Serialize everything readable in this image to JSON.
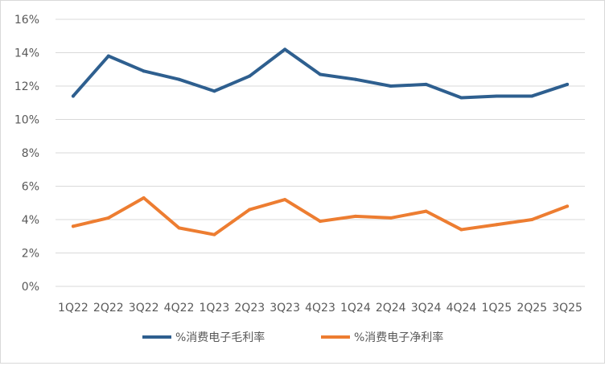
{
  "chart_data": {
    "type": "line",
    "categories": [
      "1Q22",
      "2Q22",
      "3Q22",
      "4Q22",
      "1Q23",
      "2Q23",
      "3Q23",
      "4Q23",
      "1Q24",
      "2Q24",
      "3Q24",
      "4Q24",
      "1Q25",
      "2Q25",
      "3Q25"
    ],
    "y_ticks": [
      "0%",
      "2%",
      "4%",
      "6%",
      "8%",
      "10%",
      "12%",
      "14%",
      "16%"
    ],
    "ylim": [
      0,
      16
    ],
    "grid": true,
    "legend_position": "bottom",
    "series": [
      {
        "name": "%消费电子毛利率",
        "color": "#2e5f8f",
        "values": [
          11.4,
          13.8,
          12.9,
          12.4,
          11.7,
          12.6,
          14.2,
          12.7,
          12.4,
          12.0,
          12.1,
          11.3,
          11.4,
          11.4,
          12.1
        ]
      },
      {
        "name": "%消费电子净利率",
        "color": "#ed7d31",
        "values": [
          3.6,
          4.1,
          5.3,
          3.5,
          3.1,
          4.6,
          5.2,
          3.9,
          4.2,
          4.1,
          4.5,
          3.4,
          3.7,
          4.0,
          4.8
        ]
      }
    ]
  }
}
